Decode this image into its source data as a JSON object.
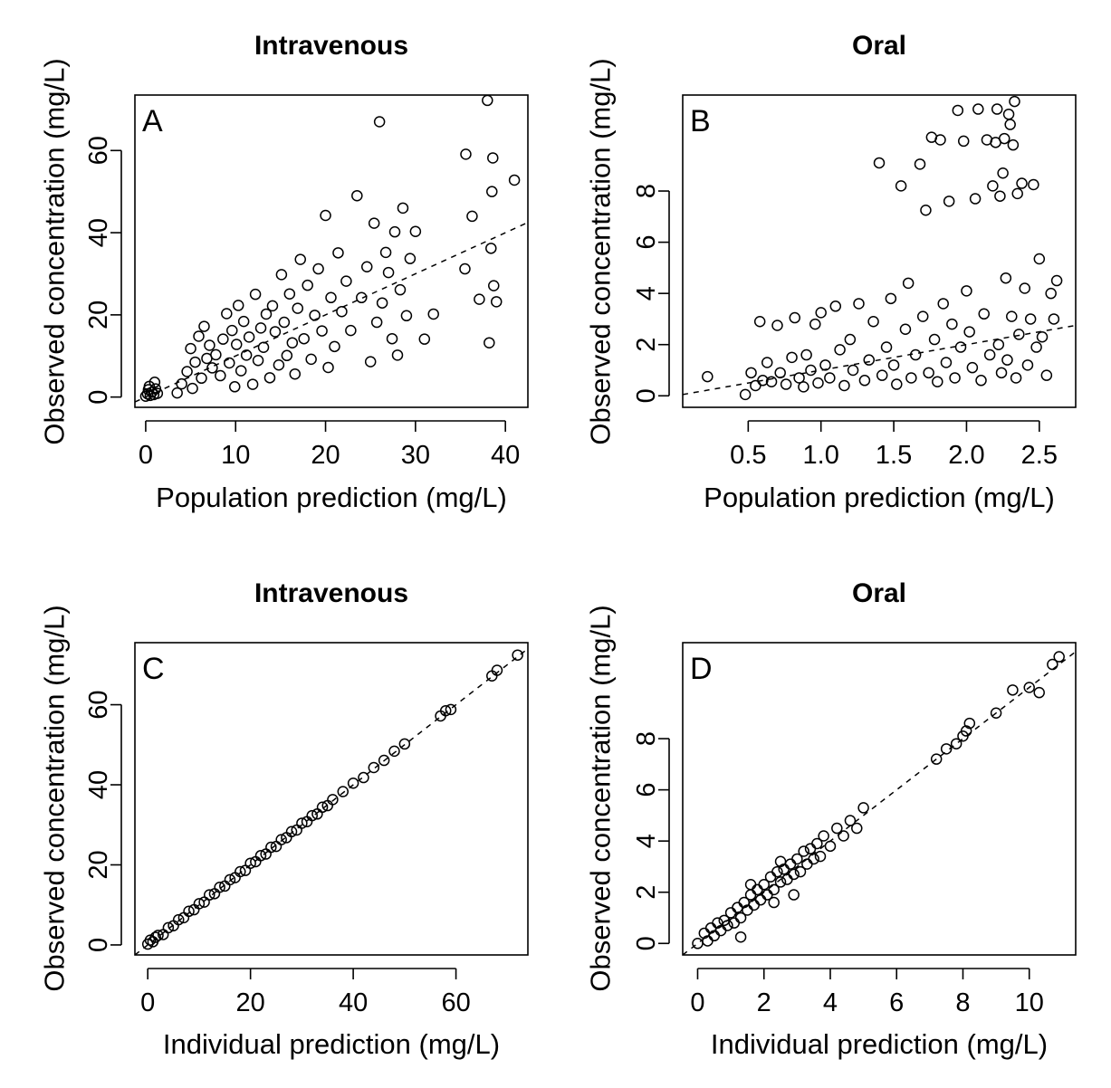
{
  "chart_data": [
    {
      "type": "scatter",
      "panel": "A",
      "title": "Intravenous",
      "xlabel": "Population prediction (mg/L)",
      "ylabel": "Observed concentration (mg/L)",
      "xlim": [
        -1.2,
        42.5
      ],
      "ylim": [
        -2.5,
        73.5
      ],
      "xticks": [
        0,
        10,
        20,
        30,
        40
      ],
      "xtick_labels": [
        "0",
        "10",
        "20",
        "30",
        "40"
      ],
      "yticks": [
        0,
        20,
        40,
        60
      ],
      "ytick_labels": [
        "0",
        "20",
        "40",
        "60"
      ],
      "reference_line": {
        "style": "dashed",
        "x": [
          -1.2,
          42.5
        ],
        "y": [
          -1.2,
          42.5
        ]
      },
      "points": [
        [
          0,
          0.2
        ],
        [
          0.2,
          0.8
        ],
        [
          0.3,
          1.8
        ],
        [
          0.5,
          0.4
        ],
        [
          0.7,
          1.2
        ],
        [
          0.9,
          0.6
        ],
        [
          1.1,
          2.0
        ],
        [
          1.3,
          0.9
        ],
        [
          0.4,
          2.6
        ],
        [
          1.0,
          3.6
        ],
        [
          3.5,
          1.0
        ],
        [
          4.0,
          3.2
        ],
        [
          4.6,
          6.2
        ],
        [
          5.0,
          11.8
        ],
        [
          5.2,
          2.1
        ],
        [
          5.5,
          8.5
        ],
        [
          5.9,
          14.8
        ],
        [
          6.2,
          4.6
        ],
        [
          6.5,
          17.2
        ],
        [
          6.8,
          9.4
        ],
        [
          7.1,
          12.6
        ],
        [
          7.4,
          7.1
        ],
        [
          7.8,
          10.3
        ],
        [
          8.3,
          5.2
        ],
        [
          8.6,
          14.1
        ],
        [
          9.0,
          20.3
        ],
        [
          9.3,
          8.3
        ],
        [
          9.6,
          16.2
        ],
        [
          9.9,
          2.5
        ],
        [
          10.1,
          12.8
        ],
        [
          10.3,
          22.3
        ],
        [
          10.6,
          6.4
        ],
        [
          10.9,
          18.4
        ],
        [
          11.2,
          10.2
        ],
        [
          11.5,
          14.6
        ],
        [
          11.9,
          3.1
        ],
        [
          12.2,
          25.0
        ],
        [
          12.5,
          8.9
        ],
        [
          12.8,
          16.8
        ],
        [
          13.1,
          12.1
        ],
        [
          13.4,
          20.2
        ],
        [
          13.8,
          4.7
        ],
        [
          14.1,
          22.2
        ],
        [
          14.4,
          15.9
        ],
        [
          14.8,
          7.8
        ],
        [
          15.1,
          29.8
        ],
        [
          15.4,
          18.2
        ],
        [
          15.7,
          10.1
        ],
        [
          16.0,
          25.1
        ],
        [
          16.3,
          13.2
        ],
        [
          16.6,
          5.6
        ],
        [
          16.9,
          21.6
        ],
        [
          17.2,
          33.5
        ],
        [
          17.6,
          14.2
        ],
        [
          18.0,
          27.2
        ],
        [
          18.4,
          9.2
        ],
        [
          18.8,
          19.9
        ],
        [
          19.2,
          31.2
        ],
        [
          19.6,
          16.1
        ],
        [
          20.0,
          44.2
        ],
        [
          20.3,
          7.2
        ],
        [
          20.6,
          24.2
        ],
        [
          21.0,
          12.3
        ],
        [
          21.4,
          35.1
        ],
        [
          21.8,
          20.8
        ],
        [
          22.3,
          28.2
        ],
        [
          22.8,
          16.2
        ],
        [
          23.5,
          49.0
        ],
        [
          24.0,
          24.2
        ],
        [
          24.6,
          31.7
        ],
        [
          25.0,
          8.6
        ],
        [
          25.4,
          42.3
        ],
        [
          25.7,
          18.2
        ],
        [
          26.0,
          67.0
        ],
        [
          26.3,
          22.9
        ],
        [
          26.7,
          35.2
        ],
        [
          27.0,
          30.3
        ],
        [
          27.4,
          14.2
        ],
        [
          27.7,
          40.2
        ],
        [
          28.0,
          10.2
        ],
        [
          28.3,
          26.1
        ],
        [
          28.6,
          46.0
        ],
        [
          29.0,
          19.8
        ],
        [
          29.4,
          33.7
        ],
        [
          30.0,
          40.3
        ],
        [
          31.0,
          14.1
        ],
        [
          32.0,
          20.2
        ],
        [
          35.5,
          31.2
        ],
        [
          35.6,
          59.1
        ],
        [
          36.3,
          44.0
        ],
        [
          37.1,
          23.8
        ],
        [
          38.0,
          72.2
        ],
        [
          38.2,
          13.2
        ],
        [
          38.4,
          36.2
        ],
        [
          38.5,
          50.0
        ],
        [
          38.6,
          58.2
        ],
        [
          38.7,
          27.1
        ],
        [
          39.0,
          23.2
        ],
        [
          41.0,
          52.8
        ]
      ]
    },
    {
      "type": "scatter",
      "panel": "B",
      "title": "Oral",
      "xlabel": "Population prediction (mg/L)",
      "ylabel": "Observed concentration (mg/L)",
      "xlim": [
        0.05,
        2.75
      ],
      "ylim": [
        -0.45,
        11.75
      ],
      "xticks": [
        0.5,
        1.0,
        1.5,
        2.0,
        2.5
      ],
      "xtick_labels": [
        "0.5",
        "1.0",
        "1.5",
        "2.0",
        "2.5"
      ],
      "yticks": [
        0,
        2,
        4,
        6,
        8
      ],
      "ytick_labels": [
        "0",
        "2",
        "4",
        "6",
        "8"
      ],
      "reference_line": {
        "style": "dashed",
        "x": [
          0.05,
          2.75
        ],
        "y": [
          0.05,
          2.75
        ]
      },
      "points": [
        [
          0.22,
          0.75
        ],
        [
          0.48,
          0.05
        ],
        [
          0.52,
          0.9
        ],
        [
          0.55,
          0.4
        ],
        [
          0.58,
          2.9
        ],
        [
          0.6,
          0.6
        ],
        [
          0.63,
          1.3
        ],
        [
          0.66,
          0.55
        ],
        [
          0.7,
          2.75
        ],
        [
          0.72,
          0.9
        ],
        [
          0.76,
          0.45
        ],
        [
          0.8,
          1.5
        ],
        [
          0.82,
          3.05
        ],
        [
          0.85,
          0.7
        ],
        [
          0.88,
          0.35
        ],
        [
          0.9,
          1.6
        ],
        [
          0.93,
          1.0
        ],
        [
          0.96,
          2.8
        ],
        [
          0.98,
          0.5
        ],
        [
          1.0,
          3.25
        ],
        [
          1.03,
          1.2
        ],
        [
          1.06,
          0.7
        ],
        [
          1.1,
          3.5
        ],
        [
          1.13,
          1.8
        ],
        [
          1.16,
          0.4
        ],
        [
          1.2,
          2.2
        ],
        [
          1.22,
          1.0
        ],
        [
          1.26,
          3.6
        ],
        [
          1.3,
          0.6
        ],
        [
          1.33,
          1.4
        ],
        [
          1.36,
          2.9
        ],
        [
          1.4,
          9.1
        ],
        [
          1.42,
          0.8
        ],
        [
          1.45,
          1.9
        ],
        [
          1.48,
          3.8
        ],
        [
          1.5,
          1.2
        ],
        [
          1.52,
          0.45
        ],
        [
          1.55,
          8.2
        ],
        [
          1.58,
          2.6
        ],
        [
          1.6,
          4.4
        ],
        [
          1.62,
          0.7
        ],
        [
          1.65,
          1.6
        ],
        [
          1.68,
          9.05
        ],
        [
          1.7,
          3.1
        ],
        [
          1.72,
          7.25
        ],
        [
          1.74,
          0.9
        ],
        [
          1.76,
          10.1
        ],
        [
          1.78,
          2.2
        ],
        [
          1.8,
          0.55
        ],
        [
          1.82,
          10.0
        ],
        [
          1.84,
          3.6
        ],
        [
          1.86,
          1.3
        ],
        [
          1.88,
          7.6
        ],
        [
          1.9,
          2.8
        ],
        [
          1.92,
          0.7
        ],
        [
          1.94,
          11.15
        ],
        [
          1.96,
          1.9
        ],
        [
          1.98,
          9.95
        ],
        [
          2.0,
          4.1
        ],
        [
          2.02,
          2.5
        ],
        [
          2.04,
          1.1
        ],
        [
          2.06,
          7.7
        ],
        [
          2.08,
          11.2
        ],
        [
          2.1,
          0.6
        ],
        [
          2.12,
          3.2
        ],
        [
          2.14,
          10.0
        ],
        [
          2.16,
          1.6
        ],
        [
          2.18,
          8.2
        ],
        [
          2.2,
          9.9
        ],
        [
          2.21,
          11.2
        ],
        [
          2.22,
          2.0
        ],
        [
          2.23,
          7.8
        ],
        [
          2.24,
          0.9
        ],
        [
          2.25,
          8.7
        ],
        [
          2.26,
          10.05
        ],
        [
          2.27,
          4.6
        ],
        [
          2.28,
          1.4
        ],
        [
          2.29,
          11.0
        ],
        [
          2.3,
          10.6
        ],
        [
          2.31,
          3.1
        ],
        [
          2.32,
          9.8
        ],
        [
          2.33,
          11.5
        ],
        [
          2.34,
          0.7
        ],
        [
          2.35,
          7.9
        ],
        [
          2.36,
          2.4
        ],
        [
          2.38,
          8.3
        ],
        [
          2.4,
          4.2
        ],
        [
          2.42,
          1.2
        ],
        [
          2.44,
          3.0
        ],
        [
          2.46,
          8.25
        ],
        [
          2.48,
          1.9
        ],
        [
          2.5,
          5.35
        ],
        [
          2.52,
          2.3
        ],
        [
          2.55,
          0.8
        ],
        [
          2.58,
          4.0
        ],
        [
          2.6,
          3.0
        ],
        [
          2.62,
          4.5
        ]
      ]
    },
    {
      "type": "scatter",
      "panel": "C",
      "title": "Intravenous",
      "xlabel": "Individual prediction (mg/L)",
      "ylabel": "Observed concentration (mg/L)",
      "xlim": [
        -2.5,
        74
      ],
      "ylim": [
        -2.5,
        75.5
      ],
      "xticks": [
        0,
        20,
        40,
        60
      ],
      "xtick_labels": [
        "0",
        "20",
        "40",
        "60"
      ],
      "yticks": [
        0,
        20,
        40,
        60
      ],
      "ytick_labels": [
        "0",
        "20",
        "40",
        "60"
      ],
      "reference_line": {
        "style": "dashed",
        "x": [
          -2.5,
          74
        ],
        "y": [
          -2.5,
          74
        ]
      },
      "points": [
        [
          0,
          0.2
        ],
        [
          0.5,
          1.2
        ],
        [
          1,
          0.8
        ],
        [
          1.5,
          1.9
        ],
        [
          2,
          2.4
        ],
        [
          3,
          2.6
        ],
        [
          4,
          4.3
        ],
        [
          5,
          4.8
        ],
        [
          6,
          6.3
        ],
        [
          7,
          6.8
        ],
        [
          8,
          8.4
        ],
        [
          9,
          8.8
        ],
        [
          10,
          10.3
        ],
        [
          11,
          10.7
        ],
        [
          12,
          12.5
        ],
        [
          13,
          12.8
        ],
        [
          14,
          14.4
        ],
        [
          15,
          14.7
        ],
        [
          16,
          16.3
        ],
        [
          17,
          16.8
        ],
        [
          18,
          18.3
        ],
        [
          19,
          18.6
        ],
        [
          20,
          20.4
        ],
        [
          21,
          20.8
        ],
        [
          22,
          22.3
        ],
        [
          23,
          22.7
        ],
        [
          24,
          24.4
        ],
        [
          25,
          24.6
        ],
        [
          26,
          26.3
        ],
        [
          27,
          26.8
        ],
        [
          28,
          28.3
        ],
        [
          29,
          28.7
        ],
        [
          30,
          30.4
        ],
        [
          31,
          30.8
        ],
        [
          32,
          32.3
        ],
        [
          33,
          32.7
        ],
        [
          34,
          34.4
        ],
        [
          35,
          34.8
        ],
        [
          36,
          36.3
        ],
        [
          38,
          38.3
        ],
        [
          40,
          40.4
        ],
        [
          42,
          41.8
        ],
        [
          44,
          44.3
        ],
        [
          46,
          46.1
        ],
        [
          48,
          48.4
        ],
        [
          50,
          50.2
        ],
        [
          57,
          57.2
        ],
        [
          58,
          58.5
        ],
        [
          59,
          58.8
        ],
        [
          67,
          67.2
        ],
        [
          68,
          68.6
        ],
        [
          72,
          72.4
        ]
      ]
    },
    {
      "type": "scatter",
      "panel": "D",
      "title": "Oral",
      "xlabel": "Individual prediction (mg/L)",
      "ylabel": "Observed concentration (mg/L)",
      "xlim": [
        -0.45,
        11.4
      ],
      "ylim": [
        -0.45,
        11.75
      ],
      "xticks": [
        0,
        2,
        4,
        6,
        8,
        10
      ],
      "xtick_labels": [
        "0",
        "2",
        "4",
        "6",
        "8",
        "10"
      ],
      "yticks": [
        0,
        2,
        4,
        6,
        8
      ],
      "ytick_labels": [
        "0",
        "2",
        "4",
        "6",
        "8"
      ],
      "reference_line": {
        "style": "dashed",
        "x": [
          -0.45,
          11.4
        ],
        "y": [
          -0.45,
          11.4
        ]
      },
      "points": [
        [
          0,
          0
        ],
        [
          0.2,
          0.4
        ],
        [
          0.3,
          0.1
        ],
        [
          0.4,
          0.6
        ],
        [
          0.5,
          0.3
        ],
        [
          0.6,
          0.8
        ],
        [
          0.7,
          0.5
        ],
        [
          0.8,
          0.9
        ],
        [
          0.9,
          0.7
        ],
        [
          1.0,
          1.2
        ],
        [
          1.1,
          0.8
        ],
        [
          1.2,
          1.4
        ],
        [
          1.3,
          1.0
        ],
        [
          1.3,
          0.25
        ],
        [
          1.4,
          1.6
        ],
        [
          1.5,
          1.3
        ],
        [
          1.6,
          1.9
        ],
        [
          1.7,
          1.5
        ],
        [
          1.8,
          2.1
        ],
        [
          1.9,
          1.7
        ],
        [
          2.0,
          2.3
        ],
        [
          2.1,
          1.9
        ],
        [
          2.2,
          2.6
        ],
        [
          2.3,
          2.1
        ],
        [
          2.4,
          2.8
        ],
        [
          2.5,
          2.4
        ],
        [
          2.6,
          2.9
        ],
        [
          2.7,
          2.5
        ],
        [
          2.8,
          3.1
        ],
        [
          2.9,
          2.7
        ],
        [
          3.0,
          3.3
        ],
        [
          3.1,
          2.8
        ],
        [
          3.2,
          3.6
        ],
        [
          3.3,
          3.1
        ],
        [
          3.4,
          3.7
        ],
        [
          3.5,
          3.3
        ],
        [
          3.6,
          3.9
        ],
        [
          3.7,
          3.4
        ],
        [
          3.8,
          4.2
        ],
        [
          4.0,
          3.8
        ],
        [
          4.2,
          4.5
        ],
        [
          4.4,
          4.2
        ],
        [
          4.6,
          4.8
        ],
        [
          4.8,
          4.5
        ],
        [
          5.0,
          5.3
        ],
        [
          2.3,
          1.6
        ],
        [
          2.9,
          1.9
        ],
        [
          1.6,
          2.3
        ],
        [
          2.5,
          3.2
        ],
        [
          7.2,
          7.2
        ],
        [
          7.5,
          7.6
        ],
        [
          7.8,
          7.8
        ],
        [
          8.0,
          8.1
        ],
        [
          8.1,
          8.3
        ],
        [
          8.2,
          8.6
        ],
        [
          9.0,
          9.0
        ],
        [
          9.5,
          9.9
        ],
        [
          10.0,
          10.0
        ],
        [
          10.3,
          9.8
        ],
        [
          10.7,
          10.9
        ],
        [
          10.9,
          11.2
        ]
      ]
    }
  ]
}
